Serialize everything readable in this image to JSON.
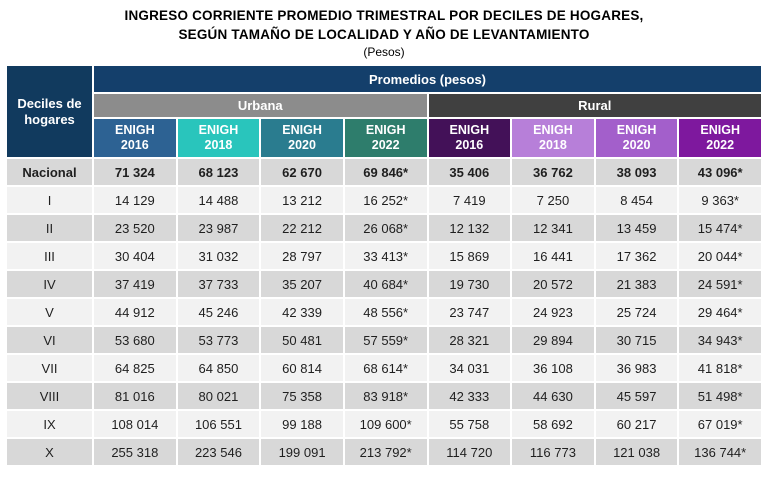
{
  "title": {
    "line1": "INGRESO CORRIENTE PROMEDIO TRIMESTRAL POR DECILES DE HOGARES,",
    "line2": "SEGÚN TAMAÑO DE LOCALIDAD Y AÑO DE LEVANTAMIENTO",
    "subtitle": "(Pesos)"
  },
  "colors": {
    "navy_band": "#143f6b",
    "corner_navy": "#113a5e",
    "urbana_gray": "#8c8c8c",
    "rural_dark": "#404040",
    "row_gray": "#d8d8d8",
    "row_light": "#f2f2f2",
    "text_dark": "#1f1f1f"
  },
  "table": {
    "corner": "Deciles de\nhogares",
    "promedios": "Promedios (pesos)",
    "groups": [
      {
        "label": "Urbana",
        "color": "#8c8c8c",
        "span": 4
      },
      {
        "label": "Rural",
        "color": "#404040",
        "span": 4
      }
    ],
    "year_columns": [
      {
        "label": "ENIGH\n2016",
        "color": "#2d6293"
      },
      {
        "label": "ENIGH\n2018",
        "color": "#29c5bc"
      },
      {
        "label": "ENIGH\n2020",
        "color": "#2a7c8f"
      },
      {
        "label": "ENIGH\n2022",
        "color": "#2e7d6c"
      },
      {
        "label": "ENIGH\n2016",
        "color": "#431158"
      },
      {
        "label": "ENIGH\n2018",
        "color": "#b77fd9"
      },
      {
        "label": "ENIGH\n2020",
        "color": "#a35fcb"
      },
      {
        "label": "ENIGH\n2022",
        "color": "#7e189e"
      }
    ],
    "rows": [
      {
        "decil": "Nacional",
        "bold": true,
        "values": [
          "71 324",
          "68 123",
          "62 670",
          "69 846*",
          "35 406",
          "36 762",
          "38 093",
          "43 096*"
        ]
      },
      {
        "decil": "I",
        "bold": false,
        "values": [
          "14 129",
          "14 488",
          "13 212",
          "16 252*",
          "7 419",
          "7 250",
          "8 454",
          "9 363*"
        ]
      },
      {
        "decil": "II",
        "bold": false,
        "values": [
          "23 520",
          "23 987",
          "22 212",
          "26 068*",
          "12 132",
          "12 341",
          "13 459",
          "15 474*"
        ]
      },
      {
        "decil": "III",
        "bold": false,
        "values": [
          "30 404",
          "31 032",
          "28 797",
          "33 413*",
          "15 869",
          "16 441",
          "17 362",
          "20 044*"
        ]
      },
      {
        "decil": "IV",
        "bold": false,
        "values": [
          "37 419",
          "37 733",
          "35 207",
          "40 684*",
          "19 730",
          "20 572",
          "21 383",
          "24 591*"
        ]
      },
      {
        "decil": "V",
        "bold": false,
        "values": [
          "44 912",
          "45 246",
          "42 339",
          "48 556*",
          "23 747",
          "24 923",
          "25 724",
          "29 464*"
        ]
      },
      {
        "decil": "VI",
        "bold": false,
        "values": [
          "53 680",
          "53 773",
          "50 481",
          "57 559*",
          "28 321",
          "29 894",
          "30 715",
          "34 943*"
        ]
      },
      {
        "decil": "VII",
        "bold": false,
        "values": [
          "64 825",
          "64 850",
          "60 814",
          "68 614*",
          "34 031",
          "36 108",
          "36 983",
          "41 818*"
        ]
      },
      {
        "decil": "VIII",
        "bold": false,
        "values": [
          "81 016",
          "80 021",
          "75 358",
          "83 918*",
          "42 333",
          "44 630",
          "45 597",
          "51 498*"
        ]
      },
      {
        "decil": "IX",
        "bold": false,
        "values": [
          "108 014",
          "106 551",
          "99 188",
          "109 600*",
          "55 758",
          "58 692",
          "60 217",
          "67 019*"
        ]
      },
      {
        "decil": "X",
        "bold": false,
        "values": [
          "255 318",
          "223 546",
          "199 091",
          "213 792*",
          "114 720",
          "116 773",
          "121 038",
          "136 744*"
        ]
      }
    ]
  },
  "chart_data": {
    "type": "table",
    "title": "Ingreso corriente promedio trimestral por deciles de hogares, según tamaño de localidad y año de levantamiento (Pesos)",
    "column_groups": [
      "Urbana",
      "Rural"
    ],
    "columns": [
      "Urbana ENIGH 2016",
      "Urbana ENIGH 2018",
      "Urbana ENIGH 2020",
      "Urbana ENIGH 2022",
      "Rural ENIGH 2016",
      "Rural ENIGH 2018",
      "Rural ENIGH 2020",
      "Rural ENIGH 2022"
    ],
    "row_labels": [
      "Nacional",
      "I",
      "II",
      "III",
      "IV",
      "V",
      "VI",
      "VII",
      "VIII",
      "IX",
      "X"
    ],
    "values": [
      [
        71324,
        68123,
        62670,
        69846,
        35406,
        36762,
        38093,
        43096
      ],
      [
        14129,
        14488,
        13212,
        16252,
        7419,
        7250,
        8454,
        9363
      ],
      [
        23520,
        23987,
        22212,
        26068,
        12132,
        12341,
        13459,
        15474
      ],
      [
        30404,
        31032,
        28797,
        33413,
        15869,
        16441,
        17362,
        20044
      ],
      [
        37419,
        37733,
        35207,
        40684,
        19730,
        20572,
        21383,
        24591
      ],
      [
        44912,
        45246,
        42339,
        48556,
        23747,
        24923,
        25724,
        29464
      ],
      [
        53680,
        53773,
        50481,
        57559,
        28321,
        29894,
        30715,
        34943
      ],
      [
        64825,
        64850,
        60814,
        68614,
        34031,
        36108,
        36983,
        41818
      ],
      [
        81016,
        80021,
        75358,
        83918,
        42333,
        44630,
        45597,
        51498
      ],
      [
        108014,
        106551,
        99188,
        109600,
        55758,
        58692,
        60217,
        67019
      ],
      [
        255318,
        223546,
        199091,
        213792,
        114720,
        116773,
        121038,
        136744
      ]
    ]
  }
}
